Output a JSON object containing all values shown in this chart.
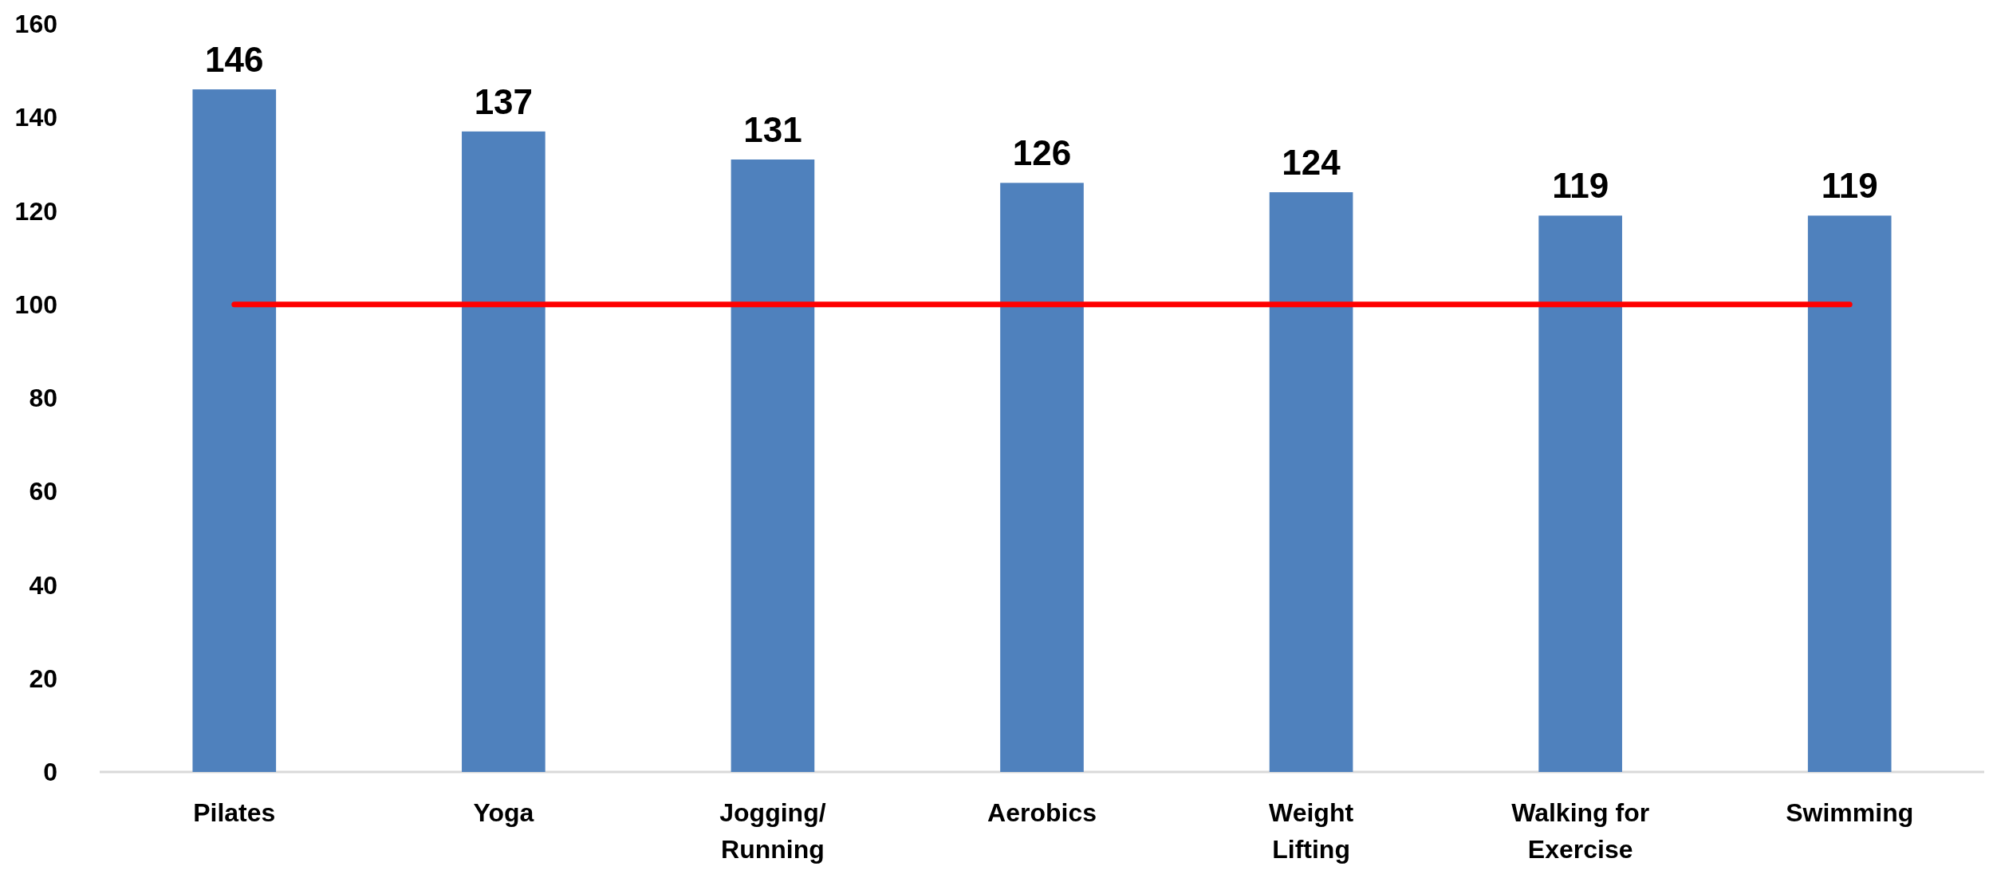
{
  "chart_data": {
    "type": "bar",
    "categories": [
      "Pilates",
      "Yoga",
      "Jogging/ Running",
      "Aerobics",
      "Weight Lifting",
      "Walking for Exercise",
      "Swimming"
    ],
    "series": [
      {
        "color": "#4f81bd",
        "values": [
          146,
          137,
          131,
          126,
          124,
          119,
          119
        ],
        "value_labels": [
          "146",
          "137",
          "131",
          "126",
          "124",
          "119",
          "119"
        ]
      },
      {
        "type": "line",
        "color": "#ff0000",
        "values": [
          100,
          100,
          100,
          100,
          100,
          100,
          100
        ]
      }
    ],
    "ylim": [
      0,
      160
    ],
    "yticks": [
      0,
      20,
      40,
      60,
      80,
      100,
      120,
      140,
      160
    ],
    "grid": false,
    "marker": "none"
  }
}
